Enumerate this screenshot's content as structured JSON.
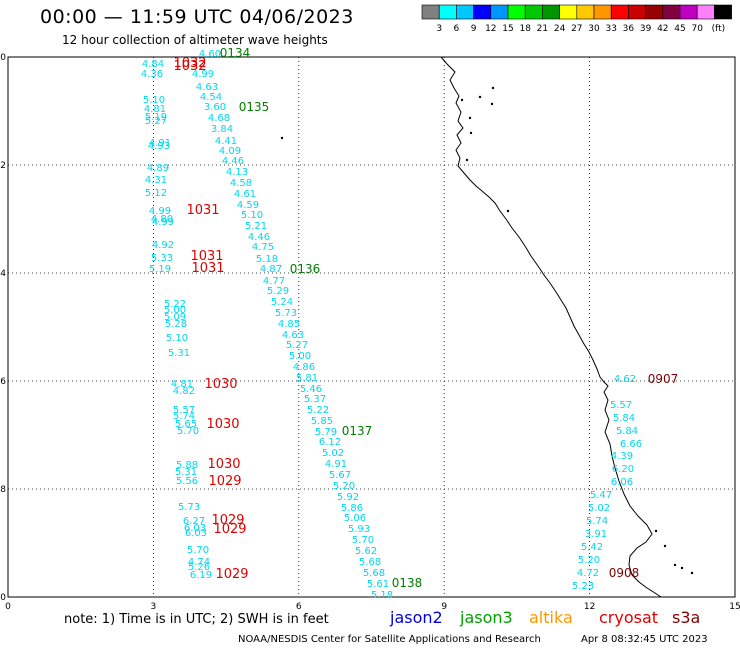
{
  "header": {
    "title": "00:00 — 11:59 UTC 04/06/2023",
    "subtitle": "12 hour collection of altimeter wave heights"
  },
  "colorbar": {
    "colors": [
      "#808080",
      "#00ffff",
      "#00c8ff",
      "#0000ff",
      "#0096ff",
      "#00ff00",
      "#00c800",
      "#009600",
      "#ffff00",
      "#ffc800",
      "#ff9600",
      "#ff0000",
      "#c80000",
      "#960000",
      "#800040",
      "#c000c0",
      "#ff80ff",
      "#000000"
    ],
    "labels": [
      "3",
      "6",
      "9",
      "12",
      "15",
      "18",
      "21",
      "24",
      "27",
      "30",
      "33",
      "36",
      "39",
      "42",
      "45",
      "70",
      "(ft)"
    ]
  },
  "axes": {
    "x_ticks": [
      "0",
      "3",
      "6",
      "9",
      "12",
      "15"
    ],
    "y_ticks": [
      "0",
      "-2",
      "-4",
      "-6",
      "-8",
      "-10"
    ]
  },
  "tracks": {
    "colors": {
      "swh": "#00d8f0",
      "jason3": "#008000",
      "cryosat": "#e00000",
      "s3a": "#800000"
    },
    "cryosat_labels": [
      "1032",
      "1032",
      "1031",
      "1031",
      "1031",
      "1030",
      "1030",
      "1030",
      "1029",
      "1029",
      "1029",
      "1029"
    ],
    "jason3_labels": [
      "0134",
      "0135",
      "0136",
      "0137",
      "0138"
    ],
    "s3a_labels": [
      "0907",
      "0908"
    ],
    "swh_values": [
      "4.60",
      "4.84",
      "4.36",
      "5.10",
      "4.81",
      "5.19",
      "5.27",
      "4.91",
      "4.93",
      "4.89",
      "4.31",
      "5.12",
      "4.99",
      "4.80",
      "4.99",
      "4.92",
      "5.33",
      "5.19",
      "5.22",
      "5.00",
      "5.09",
      "5.28",
      "5.10",
      "5.31",
      "4.81",
      "4.82",
      "5.57",
      "5.74",
      "5.65",
      "5.70",
      "5.88",
      "5.31",
      "5.56",
      "5.73",
      "6.27",
      "6.03",
      "6.03",
      "5.70",
      "4.74",
      "5.26",
      "6.19",
      "4.99",
      "4.63",
      "4.54",
      "3.60",
      "4.68",
      "3.84",
      "4.41",
      "4.09",
      "4.46",
      "4.13",
      "4.58",
      "4.61",
      "4.59",
      "5.10",
      "5.21",
      "4.46",
      "4.75",
      "5.18",
      "4.87",
      "4.77",
      "5.29",
      "5.24",
      "5.73",
      "4.85",
      "4.63",
      "5.27",
      "5.00",
      "4.86",
      "5.81",
      "5.46",
      "5.37",
      "5.22",
      "5.85",
      "5.79",
      "6.12",
      "5.02",
      "4.91",
      "5.67",
      "5.20",
      "5.92",
      "5.86",
      "5.06",
      "5.93",
      "5.70",
      "5.62",
      "5.68",
      "5.68",
      "5.61",
      "5.18",
      "4.62",
      "5.57",
      "5.84",
      "5.84",
      "6.66",
      "4.39",
      "6.20",
      "6.06",
      "5.47",
      "5.02",
      "5.74",
      "3.91",
      "5.42",
      "5.20",
      "4.72",
      "5.23"
    ]
  },
  "footer": {
    "note": "note:  1) Time is in UTC;  2) SWH is in feet",
    "satellites": [
      {
        "name": "jason2",
        "color": "#0000e0"
      },
      {
        "name": "jason3",
        "color": "#00a000"
      },
      {
        "name": "altika",
        "color": "#ff9600"
      },
      {
        "name": "cryosat",
        "color": "#e00000"
      },
      {
        "name": "s3a",
        "color": "#800000"
      }
    ],
    "credit": "NOAA/NESDIS Center for Satellite Applications and Research",
    "timestamp": "Apr  8 08:32:45 UTC 2023"
  }
}
